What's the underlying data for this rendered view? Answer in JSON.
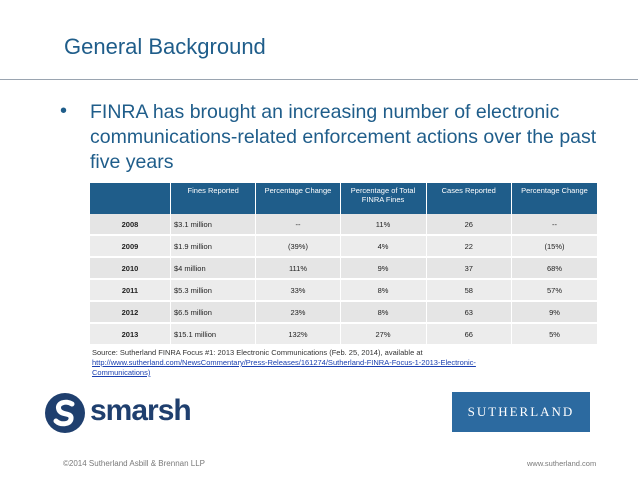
{
  "slide": {
    "title": "General Background",
    "bullet": "FINRA has brought an increasing number of electronic communications-related enforcement actions over the past five years"
  },
  "table": {
    "headers": [
      "",
      "Fines Reported",
      "Percentage Change",
      "Percentage of Total FINRA Fines",
      "Cases Reported",
      "Percentage Change"
    ],
    "rows": [
      [
        "2008",
        "$3.1 million",
        "--",
        "11%",
        "26",
        "--"
      ],
      [
        "2009",
        "$1.9 million",
        "(39%)",
        "4%",
        "22",
        "(15%)"
      ],
      [
        "2010",
        "$4 million",
        "111%",
        "9%",
        "37",
        "68%"
      ],
      [
        "2011",
        "$5.3 million",
        "33%",
        "8%",
        "58",
        "57%"
      ],
      [
        "2012",
        "$6.5 million",
        "23%",
        "8%",
        "63",
        "9%"
      ],
      [
        "2013",
        "$15.1 million",
        "132%",
        "27%",
        "66",
        "5%"
      ]
    ]
  },
  "source": {
    "text": "Source: Sutherland FINRA Focus #1: 2013 Electronic Communications (Feb. 25, 2014), available at",
    "link": "http://www.sutherland.com/NewsCommentary/Press-Releases/161274/Sutherland-FINRA-Focus-1-2013-Electronic-Communications)"
  },
  "logos": {
    "smarsh": "smarsh",
    "sutherland": "SUTHERLAND"
  },
  "footer": {
    "copyright": "©2014 Sutherland Asbill & Brennan LLP",
    "website": "www.sutherland.com"
  },
  "colors": {
    "accent": "#1f5d8a",
    "header_bg": "#1f5d8a",
    "row_bg": "#e5e5e5",
    "sutherland_box": "#2c6aa0"
  }
}
